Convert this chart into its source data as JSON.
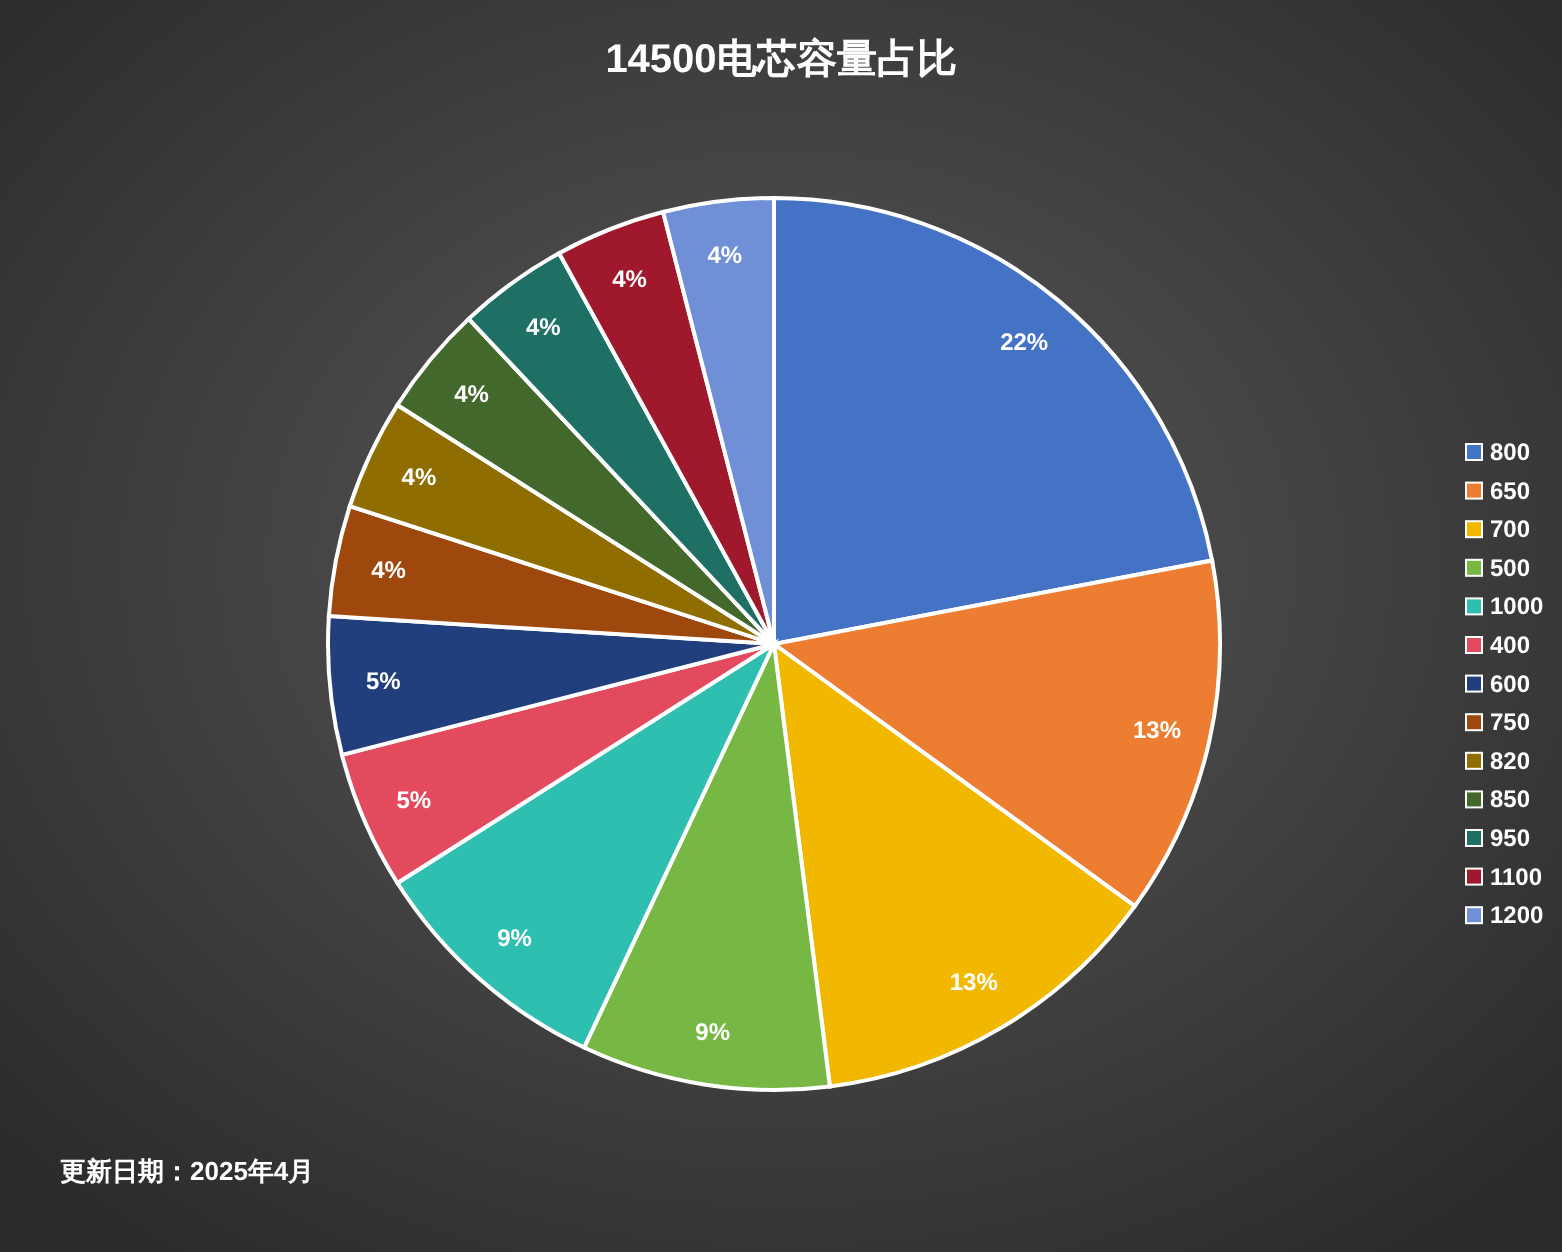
{
  "chart_data": {
    "type": "pie",
    "title": "14500电芯容量占比",
    "annotations": [
      "更新日期：2025年4月"
    ],
    "categories": [
      "800",
      "650",
      "700",
      "500",
      "1000",
      "400",
      "600",
      "750",
      "820",
      "850",
      "950",
      "1100",
      "1200"
    ],
    "values": [
      22,
      13,
      13,
      9,
      9,
      5,
      5,
      4,
      4,
      4,
      4,
      4,
      4
    ],
    "value_labels": [
      "22%",
      "13%",
      "13%",
      "9%",
      "9%",
      "5%",
      "5%",
      "4%",
      "4%",
      "4%",
      "4%",
      "4%",
      "4%"
    ],
    "colors": [
      "#4472c4",
      "#ed7d31",
      "#f2b800",
      "#76b843",
      "#2ebfb0",
      "#e34a5e",
      "#213f7c",
      "#9e480e",
      "#8f6d00",
      "#43682b",
      "#1e7065",
      "#a0182b",
      "#6f8fd6"
    ],
    "legend": "right"
  }
}
